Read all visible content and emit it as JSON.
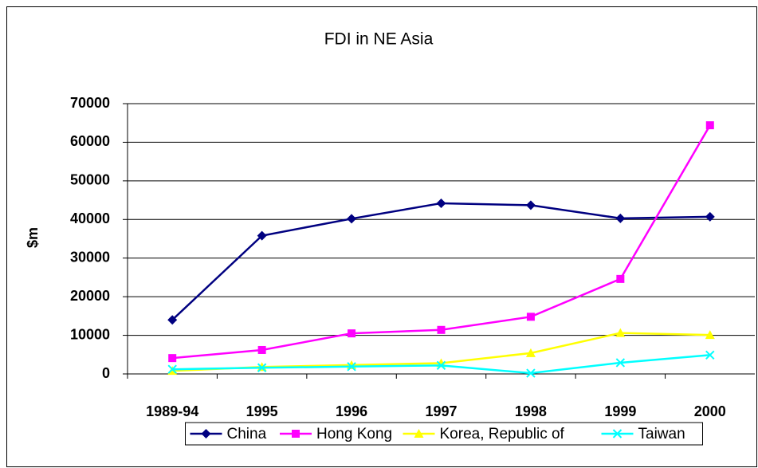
{
  "chart_data": {
    "type": "line",
    "title": "FDI in NE Asia",
    "y_label": "$m",
    "categories": [
      "1989-94",
      "1995",
      "1996",
      "1997",
      "1998",
      "1999",
      "2000"
    ],
    "series": [
      {
        "name": "China",
        "color": "#000080",
        "marker": "diamond",
        "values": [
          14000,
          35800,
          40200,
          44200,
          43700,
          40300,
          40700
        ]
      },
      {
        "name": "Hong Kong",
        "color": "#ff00ff",
        "marker": "square",
        "values": [
          4100,
          6200,
          10500,
          11400,
          14800,
          24600,
          64400
        ]
      },
      {
        "name": "Korea, Republic of",
        "color": "#ffff00",
        "marker": "triangle",
        "values": [
          800,
          1800,
          2300,
          2800,
          5400,
          10600,
          10100
        ]
      },
      {
        "name": "Taiwan",
        "color": "#00ffff",
        "marker": "x",
        "values": [
          1200,
          1600,
          1900,
          2200,
          200,
          2900,
          4900
        ]
      }
    ],
    "ylim": [
      0,
      70000
    ],
    "yticks": [
      0,
      10000,
      20000,
      30000,
      40000,
      50000,
      60000,
      70000
    ],
    "grid": true,
    "legend": "bottom"
  }
}
